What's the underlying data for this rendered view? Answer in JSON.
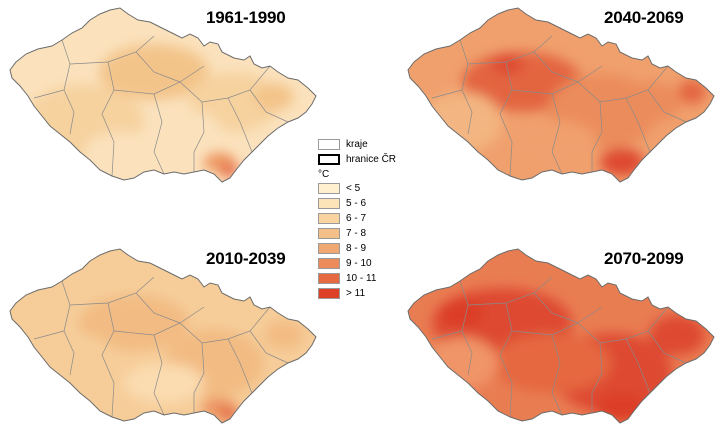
{
  "panels": [
    {
      "period": "1961-1990",
      "palette": [
        "#fbe2bd",
        "#f6d29f",
        "#f3c48a"
      ],
      "hot": "#ee9a64",
      "hotSpot": "#e7714d"
    },
    {
      "period": "2040-2069",
      "palette": [
        "#f0a06d",
        "#eb8c5b",
        "#f3b581"
      ],
      "hot": "#e36541",
      "hotSpot": "#de4a30"
    },
    {
      "period": "2010-2039",
      "palette": [
        "#f6cd99",
        "#f2bb83",
        "#fbdcb0"
      ],
      "hot": "#ec9360",
      "hotSpot": "#e36a45"
    },
    {
      "period": "2070-2099",
      "palette": [
        "#e97d52",
        "#e5673f",
        "#f09567"
      ],
      "hot": "#de4a30",
      "hotSpot": "#db3c26"
    }
  ],
  "legend": {
    "kraje": "kraje",
    "border": "hranice ČR",
    "unit": "°C",
    "classes": [
      {
        "label": "< 5",
        "color": "#fff1cf"
      },
      {
        "label": "5 - 6",
        "color": "#fde3b8"
      },
      {
        "label": "6 - 7",
        "color": "#f9d3a0"
      },
      {
        "label": "7 - 8",
        "color": "#f4c08a"
      },
      {
        "label": "8 - 9",
        "color": "#f0a872"
      },
      {
        "label": "9 - 10",
        "color": "#ec8c5a"
      },
      {
        "label": "10 - 11",
        "color": "#e56a42"
      },
      {
        "label": "> 11",
        "color": "#dd3f27"
      }
    ]
  }
}
